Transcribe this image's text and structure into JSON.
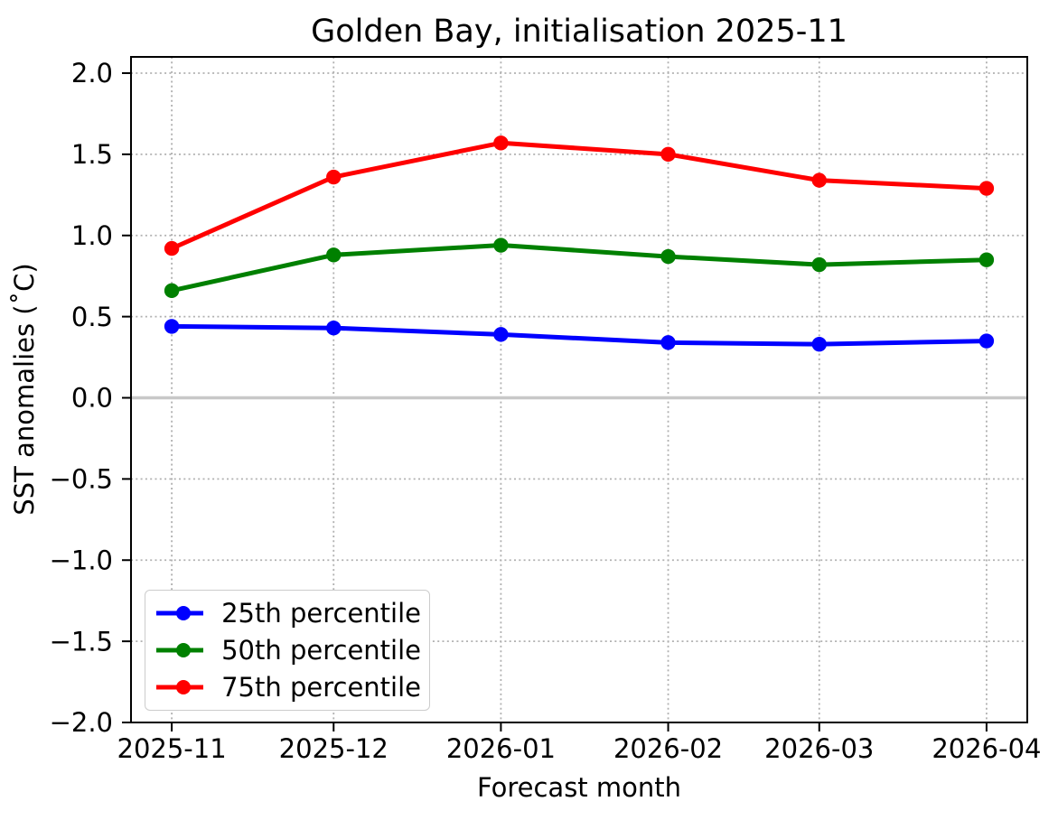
{
  "chart_data": {
    "type": "line",
    "title": "Golden Bay, initialisation 2025-11",
    "xlabel": "Forecast month",
    "ylabel": "SST anomalies (˚C)",
    "categories": [
      "2025-11",
      "2025-12",
      "2026-01",
      "2026-02",
      "2026-03",
      "2026-04"
    ],
    "x_axis_kind": "datetime-months",
    "series": [
      {
        "name": "25th percentile",
        "color": "#0000ff",
        "values": [
          0.44,
          0.43,
          0.39,
          0.34,
          0.33,
          0.35
        ]
      },
      {
        "name": "50th percentile",
        "color": "#008000",
        "values": [
          0.66,
          0.88,
          0.94,
          0.87,
          0.82,
          0.85
        ]
      },
      {
        "name": "75th percentile",
        "color": "#ff0000",
        "values": [
          0.92,
          1.36,
          1.57,
          1.5,
          1.34,
          1.29
        ]
      }
    ],
    "ylim": [
      -2.0,
      2.1
    ],
    "yticks": [
      -2.0,
      -1.5,
      -1.0,
      -0.5,
      0.0,
      0.5,
      1.0,
      1.5,
      2.0
    ],
    "ytick_labels": [
      "−2.0",
      "−1.5",
      "−1.0",
      "−0.5",
      "0.0",
      "0.5",
      "1.0",
      "1.5",
      "2.0"
    ],
    "grid": "dotted",
    "zero_line": true,
    "legend_position": "lower left",
    "marker": "circle",
    "colors": {
      "grid": "#b0b0b0",
      "zero_line": "#c8c8c8",
      "axis": "#000000",
      "background": "#ffffff",
      "legend_border": "#cccccc"
    }
  }
}
